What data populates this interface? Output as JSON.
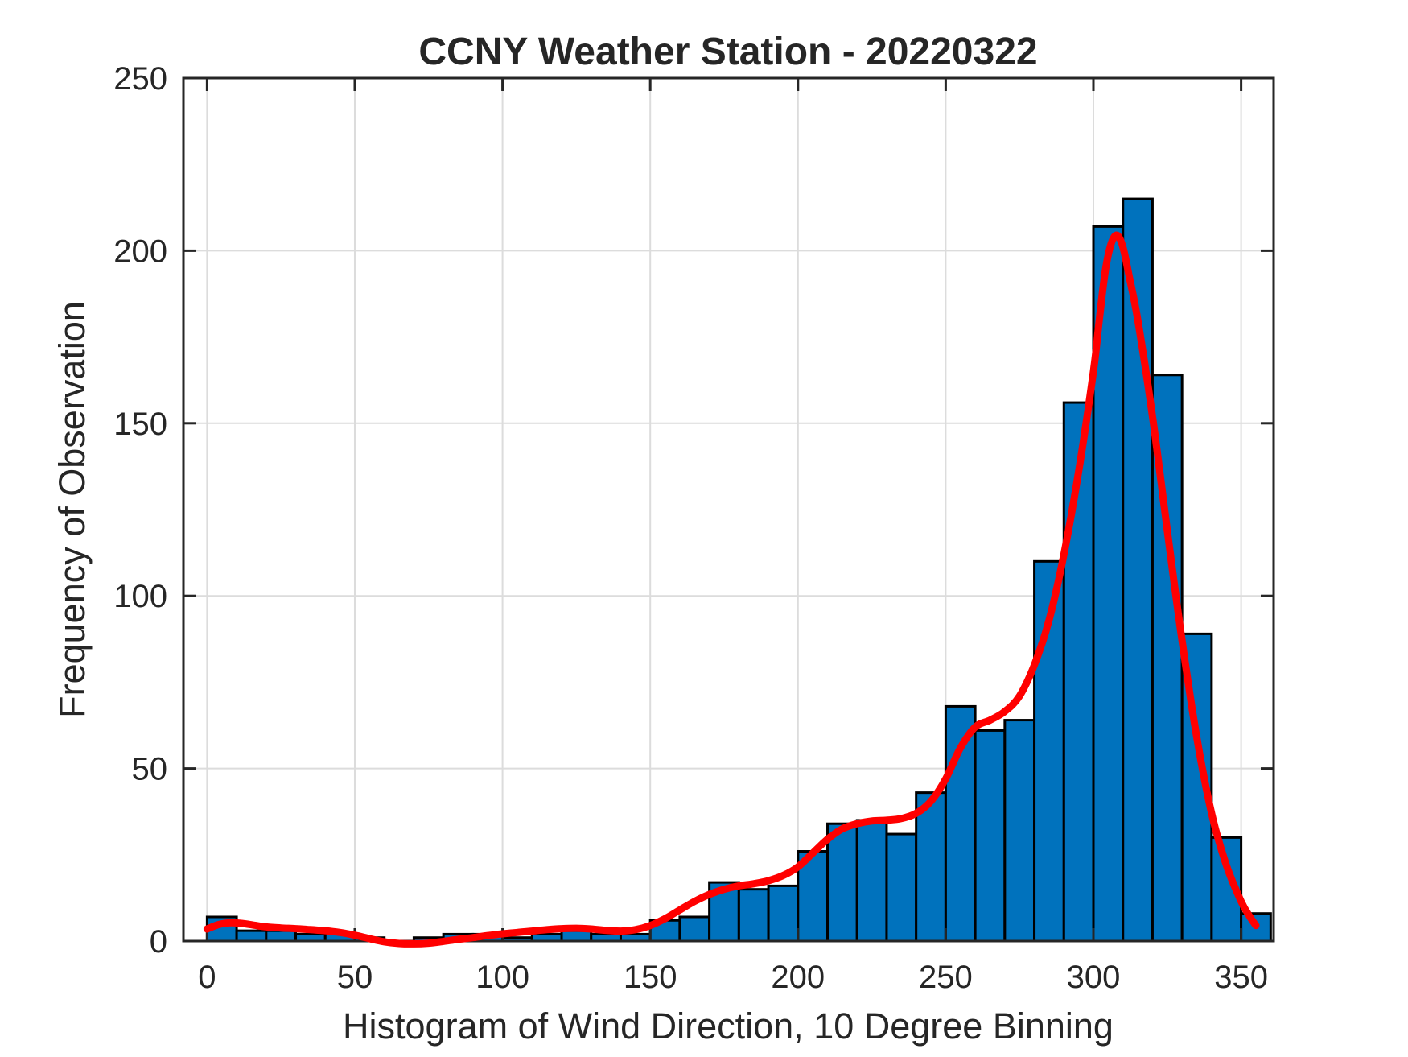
{
  "chart_data": {
    "type": "bar",
    "subtype": "histogram-with-density-line",
    "title": "CCNY Weather Station - 20220322",
    "xlabel": "Histogram of Wind Direction, 10 Degree Binning",
    "ylabel": "Frequency of Observation",
    "bin_width_degrees": 10,
    "bin_start_degrees": [
      0,
      10,
      20,
      30,
      40,
      50,
      60,
      70,
      80,
      90,
      100,
      110,
      120,
      130,
      140,
      150,
      160,
      170,
      180,
      190,
      200,
      210,
      220,
      230,
      240,
      250,
      260,
      270,
      280,
      290,
      300,
      310,
      320,
      330,
      340,
      350
    ],
    "values": [
      7,
      3,
      3,
      2,
      2,
      1,
      0,
      1,
      2,
      2,
      1,
      2,
      3,
      2,
      2,
      6,
      7,
      17,
      15,
      16,
      26,
      34,
      35,
      31,
      43,
      68,
      61,
      64,
      110,
      156,
      207,
      215,
      164,
      89,
      30,
      8
    ],
    "series": [
      {
        "name": "wind-direction-frequency-bars",
        "type": "bar",
        "color": "#0072BD",
        "edge_color": "#000000"
      },
      {
        "name": "smoothed-density-curve",
        "type": "line",
        "color": "#FF0000",
        "points": [
          [
            0,
            3.5
          ],
          [
            4,
            4.8
          ],
          [
            8,
            5.3
          ],
          [
            12,
            5.1
          ],
          [
            16,
            4.6
          ],
          [
            20,
            4.1
          ],
          [
            25,
            3.8
          ],
          [
            30,
            3.6
          ],
          [
            35,
            3.3
          ],
          [
            40,
            3.0
          ],
          [
            45,
            2.5
          ],
          [
            50,
            1.7
          ],
          [
            55,
            0.7
          ],
          [
            60,
            -0.2
          ],
          [
            65,
            -0.7
          ],
          [
            70,
            -0.8
          ],
          [
            75,
            -0.6
          ],
          [
            80,
            -0.1
          ],
          [
            85,
            0.5
          ],
          [
            90,
            1.0
          ],
          [
            95,
            1.6
          ],
          [
            100,
            2.1
          ],
          [
            105,
            2.5
          ],
          [
            110,
            2.9
          ],
          [
            115,
            3.3
          ],
          [
            120,
            3.6
          ],
          [
            125,
            3.7
          ],
          [
            130,
            3.5
          ],
          [
            135,
            3.1
          ],
          [
            140,
            2.9
          ],
          [
            145,
            3.3
          ],
          [
            150,
            4.5
          ],
          [
            155,
            6.5
          ],
          [
            160,
            9.0
          ],
          [
            165,
            11.5
          ],
          [
            170,
            13.5
          ],
          [
            175,
            15.0
          ],
          [
            180,
            16.0
          ],
          [
            185,
            16.6
          ],
          [
            190,
            17.5
          ],
          [
            195,
            19.0
          ],
          [
            200,
            21.5
          ],
          [
            205,
            25.5
          ],
          [
            210,
            29.5
          ],
          [
            215,
            32.5
          ],
          [
            220,
            34.0
          ],
          [
            225,
            34.8
          ],
          [
            230,
            35.0
          ],
          [
            235,
            35.5
          ],
          [
            240,
            37.0
          ],
          [
            245,
            40.5
          ],
          [
            250,
            47.0
          ],
          [
            255,
            56.0
          ],
          [
            260,
            62.0
          ],
          [
            265,
            64.0
          ],
          [
            270,
            66.5
          ],
          [
            275,
            71.0
          ],
          [
            280,
            80.0
          ],
          [
            285,
            93.0
          ],
          [
            290,
            112.0
          ],
          [
            295,
            136.0
          ],
          [
            300,
            165.0
          ],
          [
            302,
            180.0
          ],
          [
            304,
            194.0
          ],
          [
            306,
            202.0
          ],
          [
            308,
            204.5
          ],
          [
            310,
            201.0
          ],
          [
            312,
            193.0
          ],
          [
            315,
            180.0
          ],
          [
            320,
            152.0
          ],
          [
            325,
            119.0
          ],
          [
            330,
            87.0
          ],
          [
            335,
            59.0
          ],
          [
            340,
            37.0
          ],
          [
            345,
            22.0
          ],
          [
            350,
            11.5
          ],
          [
            353,
            7.0
          ],
          [
            355,
            4.5
          ]
        ]
      }
    ],
    "xticks": [
      0,
      50,
      100,
      150,
      200,
      250,
      300,
      350
    ],
    "yticks": [
      0,
      50,
      100,
      150,
      200,
      250
    ],
    "xlim": [
      -8,
      361
    ],
    "ylim": [
      0,
      250
    ],
    "grid": true,
    "legend": "none",
    "colors": {
      "bar_fill": "#0072BD",
      "bar_edge": "#000000",
      "line": "#FF0000",
      "grid": "#dcdcdc",
      "axis": "#262626",
      "background": "#ffffff"
    }
  }
}
